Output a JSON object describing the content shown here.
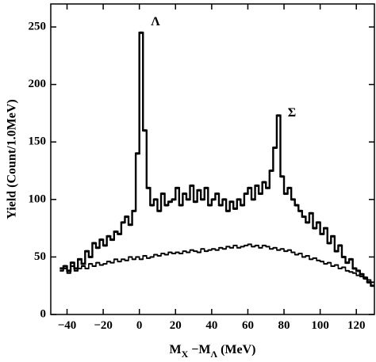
{
  "chart_data": {
    "type": "histogram",
    "x_label": [
      "M",
      "X",
      " −M",
      "Λ",
      " (MeV)"
    ],
    "y_label": "Yield (Count/1.0MeV)",
    "annotations": [
      "Λ",
      "Σ"
    ],
    "bins": [
      -44,
      -42,
      -40,
      -38,
      -36,
      -34,
      -32,
      -30,
      -28,
      -26,
      -24,
      -22,
      -20,
      -18,
      -16,
      -14,
      -12,
      -10,
      -8,
      -6,
      -4,
      -2,
      0,
      2,
      4,
      6,
      8,
      10,
      12,
      14,
      16,
      18,
      20,
      22,
      24,
      26,
      28,
      30,
      32,
      34,
      36,
      38,
      40,
      42,
      44,
      46,
      48,
      50,
      52,
      54,
      56,
      58,
      60,
      62,
      64,
      66,
      68,
      70,
      72,
      74,
      76,
      78,
      80,
      82,
      84,
      86,
      88,
      90,
      92,
      94,
      96,
      98,
      100,
      102,
      104,
      106,
      108,
      110,
      112,
      114,
      116,
      118,
      120,
      122,
      124,
      126,
      128,
      130
    ],
    "series": [
      {
        "color": "#000000",
        "width": 3,
        "values": [
          40,
          42,
          38,
          45,
          40,
          48,
          44,
          55,
          50,
          62,
          58,
          65,
          60,
          68,
          65,
          72,
          70,
          80,
          85,
          78,
          90,
          140,
          245,
          160,
          110,
          95,
          100,
          90,
          105,
          95,
          98,
          100,
          110,
          95,
          105,
          100,
          112,
          98,
          108,
          100,
          110,
          95,
          100,
          105,
          95,
          100,
          90,
          98,
          92,
          100,
          95,
          105,
          110,
          100,
          112,
          105,
          115,
          110,
          125,
          145,
          173,
          120,
          105,
          110,
          100,
          95,
          90,
          85,
          80,
          88,
          75,
          80,
          70,
          75,
          62,
          68,
          55,
          60,
          50,
          45,
          48,
          40,
          38,
          35,
          32,
          28,
          25
        ]
      },
      {
        "color": "#000000",
        "width": 2,
        "values": [
          38,
          40,
          36,
          42,
          38,
          40,
          42,
          40,
          44,
          42,
          45,
          43,
          44,
          46,
          45,
          48,
          46,
          48,
          47,
          50,
          48,
          50,
          48,
          51,
          49,
          50,
          52,
          51,
          53,
          52,
          54,
          53,
          54,
          53,
          55,
          54,
          56,
          55,
          54,
          57,
          55,
          56,
          57,
          56,
          58,
          57,
          59,
          58,
          60,
          58,
          59,
          60,
          61,
          59,
          60,
          58,
          60,
          59,
          57,
          58,
          56,
          57,
          55,
          56,
          54,
          52,
          53,
          50,
          51,
          48,
          49,
          47,
          46,
          44,
          45,
          42,
          43,
          40,
          41,
          38,
          37,
          36,
          34,
          33,
          31,
          30,
          28
        ]
      }
    ],
    "xlim": [
      -49,
      130
    ],
    "ylim": [
      0,
      270
    ],
    "xticks": [
      {
        "value": -40,
        "label": "−40"
      },
      {
        "value": -20,
        "label": "−20"
      },
      0,
      20,
      40,
      60,
      80,
      100,
      120
    ],
    "yticks": [
      0,
      50,
      100,
      150,
      200,
      250
    ]
  }
}
